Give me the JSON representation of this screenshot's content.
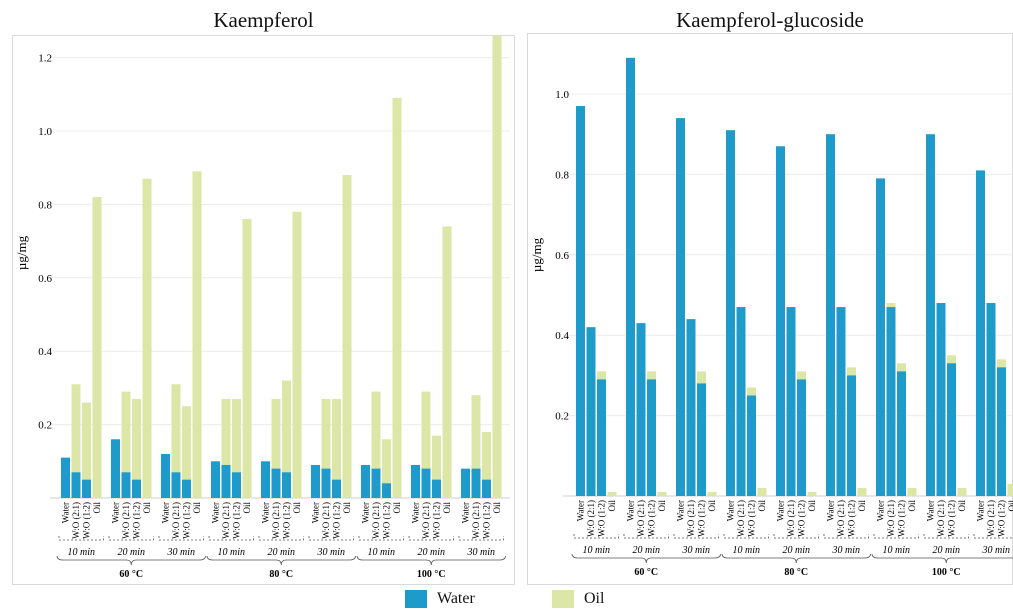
{
  "legend": {
    "water_label": "Water",
    "oil_label": "Oil"
  },
  "colors": {
    "water": "#1E9BCB",
    "oil": "#DCE6A6"
  },
  "chart_data": [
    {
      "type": "bar",
      "stacked": "overlapping",
      "title": "Kaempferol",
      "ylabel": "µg/mg",
      "ylim": [
        0,
        1.3
      ],
      "yticks": [
        "0.2",
        "0.4",
        "0.6",
        "0.8",
        "1.0",
        "1.2"
      ],
      "grid": true,
      "legend_position": "bottom",
      "bar_labels": [
        "Water",
        "W:O (2:1)",
        "W:O (1:2)",
        "Oil"
      ],
      "time_labels": [
        "10 min",
        "20 min",
        "30 min"
      ],
      "temperature_labels": [
        "60 °C",
        "80 °C",
        "100 °C"
      ],
      "series": [
        {
          "name": "Water",
          "values": [
            0.11,
            0.07,
            0.05,
            0.0,
            0.16,
            0.07,
            0.05,
            0.0,
            0.12,
            0.07,
            0.05,
            0.0,
            0.1,
            0.09,
            0.07,
            0.0,
            0.1,
            0.08,
            0.07,
            0.0,
            0.09,
            0.08,
            0.05,
            0.0,
            0.09,
            0.08,
            0.04,
            0.0,
            0.09,
            0.08,
            0.05,
            0.0,
            0.08,
            0.08,
            0.05,
            0.0
          ]
        },
        {
          "name": "Oil",
          "values": [
            0.0,
            0.31,
            0.26,
            0.82,
            0.0,
            0.29,
            0.27,
            0.87,
            0.0,
            0.31,
            0.25,
            0.89,
            0.0,
            0.27,
            0.27,
            0.76,
            0.0,
            0.27,
            0.32,
            0.78,
            0.0,
            0.27,
            0.27,
            0.88,
            0.0,
            0.29,
            0.16,
            1.09,
            0.0,
            0.29,
            0.17,
            0.74,
            0.0,
            0.28,
            0.18,
            1.26
          ]
        }
      ]
    },
    {
      "type": "bar",
      "stacked": "overlapping",
      "title": "Kaempferol-glucoside",
      "ylabel": "µg/mg",
      "ylim": [
        0,
        1.15
      ],
      "yticks": [
        "0.2",
        "0.4",
        "0.6",
        "0.8",
        "1.0"
      ],
      "grid": true,
      "legend_position": "bottom",
      "bar_labels": [
        "Water",
        "W:O (2:1)",
        "W:O (1:2)",
        "Oil"
      ],
      "time_labels": [
        "10 min",
        "20 min",
        "30 min"
      ],
      "temperature_labels": [
        "60 °C",
        "80 °C",
        "100 °C"
      ],
      "series": [
        {
          "name": "Water",
          "values": [
            0.97,
            0.42,
            0.29,
            0.0,
            1.09,
            0.43,
            0.29,
            0.0,
            0.94,
            0.44,
            0.28,
            0.0,
            0.91,
            0.47,
            0.25,
            0.0,
            0.87,
            0.47,
            0.29,
            0.0,
            0.9,
            0.47,
            0.3,
            0.0,
            0.79,
            0.47,
            0.31,
            0.0,
            0.9,
            0.48,
            0.33,
            0.0,
            0.81,
            0.48,
            0.32,
            0.0
          ]
        },
        {
          "name": "Oil",
          "values": [
            0.0,
            0.0,
            0.31,
            0.01,
            0.0,
            0.0,
            0.31,
            0.01,
            0.0,
            0.0,
            0.31,
            0.01,
            0.0,
            0.0,
            0.27,
            0.02,
            0.0,
            0.0,
            0.31,
            0.01,
            0.0,
            0.0,
            0.32,
            0.02,
            0.0,
            0.48,
            0.33,
            0.02,
            0.0,
            0.0,
            0.35,
            0.02,
            0.0,
            0.0,
            0.34,
            0.03
          ]
        }
      ]
    }
  ]
}
